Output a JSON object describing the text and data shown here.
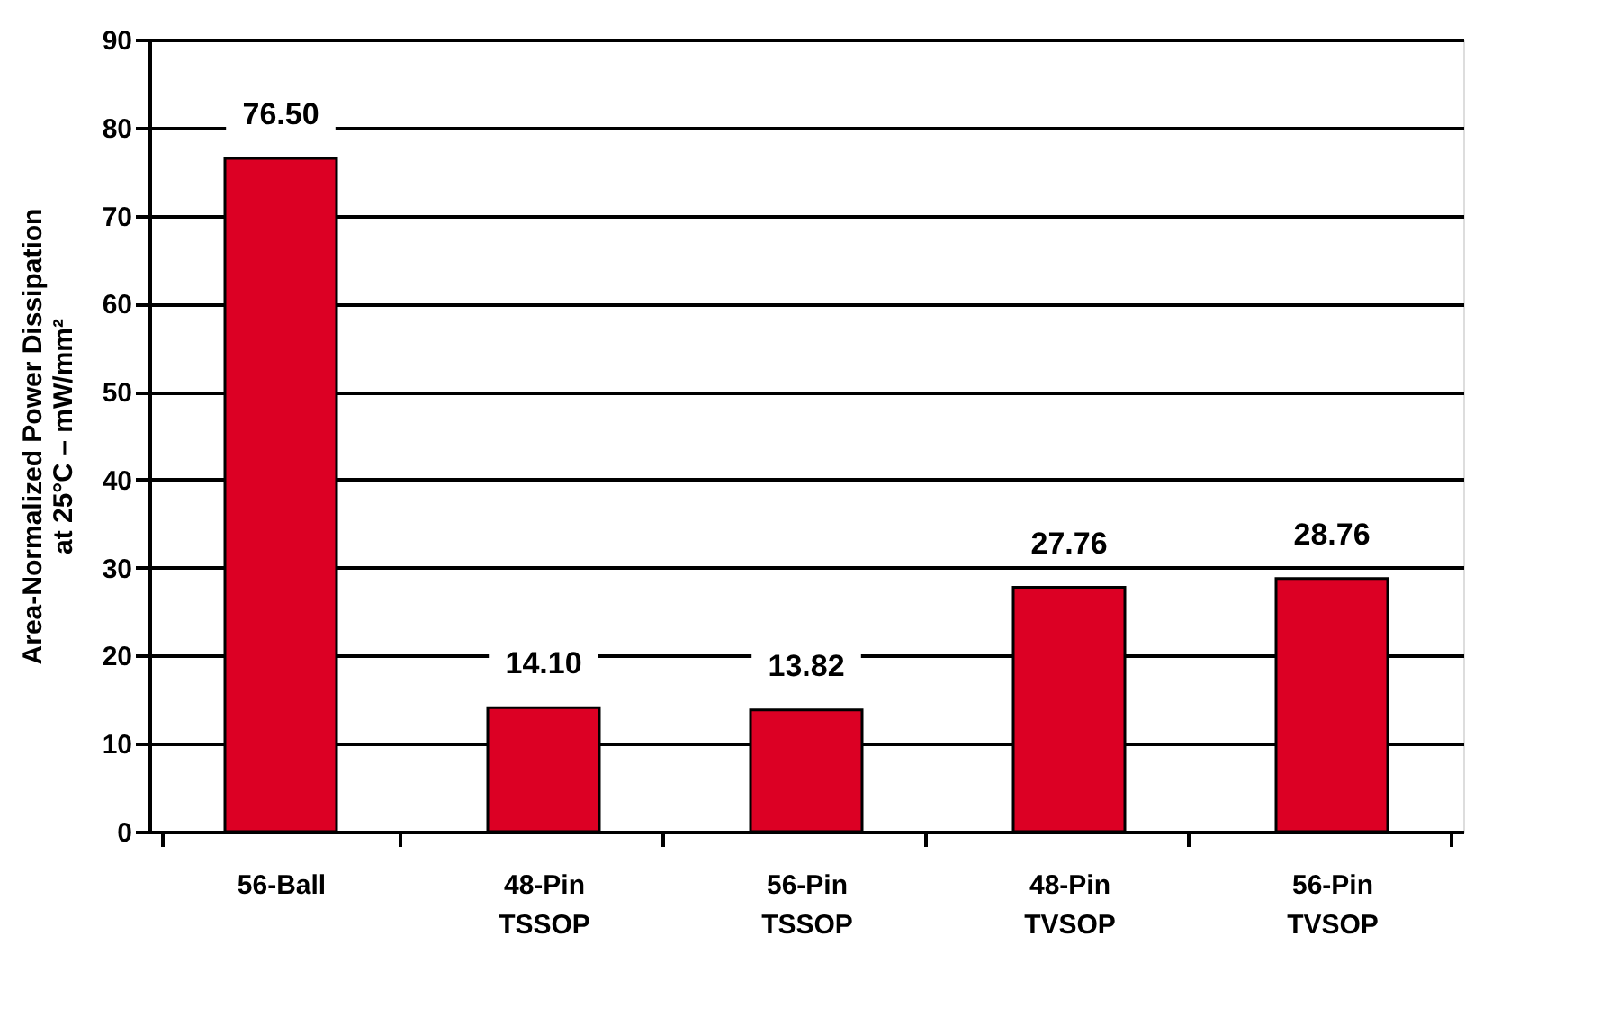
{
  "chart_data": {
    "type": "bar",
    "ylabel": "Area-Normalized Power Dissipation\nat 25°C – mW/mm²",
    "categories": [
      "56-Ball",
      "48-Pin\nTSSOP",
      "56-Pin\nTSSOP",
      "48-Pin\nTVSOP",
      "56-Pin\nTVSOP"
    ],
    "values": [
      76.5,
      14.1,
      13.82,
      27.76,
      28.76
    ],
    "color": "#dc0024",
    "ylim": [
      0,
      90
    ],
    "yticks": [
      0,
      10,
      20,
      30,
      40,
      50,
      60,
      70,
      80,
      90
    ],
    "value_labels": [
      "76.50",
      "14.10",
      "13.82",
      "27.76",
      "28.76"
    ],
    "grid": "y"
  }
}
